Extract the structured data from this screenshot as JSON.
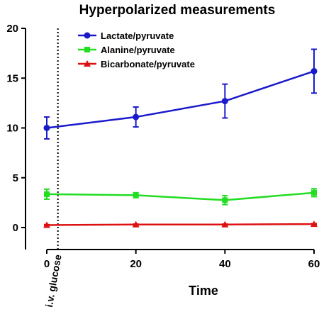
{
  "chart_data": {
    "type": "line",
    "title": "Hyperpolarized measurements",
    "xlabel": "Time",
    "ylabel": "",
    "x": [
      0,
      20,
      40,
      60
    ],
    "xticks": [
      0,
      20,
      40,
      60
    ],
    "yticks": [
      0,
      5,
      10,
      15,
      20
    ],
    "xlim": [
      0,
      60
    ],
    "ylim": [
      0,
      20
    ],
    "grid": false,
    "legend_position": "top-right",
    "series": [
      {
        "name": "Lactate/pyruvate",
        "color": "#1a1acc",
        "marker": "circle",
        "values": [
          10.0,
          11.1,
          12.7,
          15.7
        ],
        "errors": [
          1.1,
          1.0,
          1.7,
          2.2
        ]
      },
      {
        "name": "Alanine/pyruvate",
        "color": "#22dd22",
        "marker": "square",
        "values": [
          3.35,
          3.25,
          2.75,
          3.5
        ],
        "errors": [
          0.5,
          0.25,
          0.45,
          0.4
        ]
      },
      {
        "name": "Bicarbonate/pyruvate",
        "color": "#dd1111",
        "marker": "triangle",
        "values": [
          0.25,
          0.3,
          0.3,
          0.35
        ],
        "errors": [
          0.05,
          0.05,
          0.05,
          0.05
        ]
      }
    ],
    "annotations": [
      {
        "text": "i.v. glucose",
        "x": 2.5,
        "style": "dotted-vertical-line"
      }
    ]
  }
}
